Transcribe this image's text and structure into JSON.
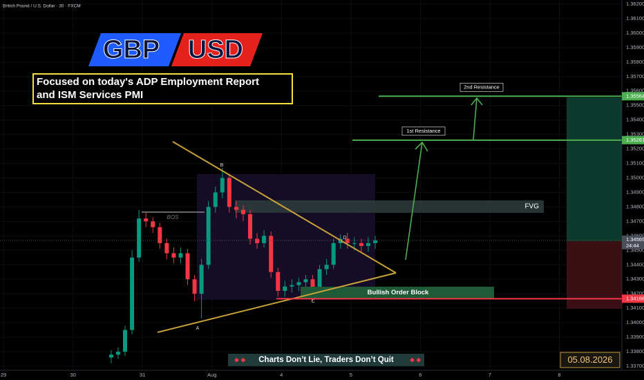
{
  "chart_data": {
    "type": "candlestick",
    "title": "British Pound / U.S. Dollar · 30 · FXCM",
    "logo": [
      "GBP",
      "USD"
    ],
    "headline": [
      "Focused on today's ADP Employment Report",
      "and ISM Services PMI"
    ],
    "xlim": [
      -0.05,
      8.9
    ],
    "xticks": [
      {
        "value": 0,
        "label": "29"
      },
      {
        "value": 1,
        "label": "30"
      },
      {
        "value": 2,
        "label": "31"
      },
      {
        "value": 3,
        "label": "Aug"
      },
      4,
      5,
      6,
      7,
      8
    ],
    "ylim": [
      1.337,
      1.362
    ],
    "yticks": [
      {
        "value": 1.362,
        "label": "1.36200"
      },
      {
        "value": 1.361,
        "label": "1.36100"
      },
      {
        "value": 1.36,
        "label": "1.36000"
      },
      {
        "value": 1.359,
        "label": "1.35900"
      },
      {
        "value": 1.358,
        "label": "1.35800"
      },
      {
        "value": 1.357,
        "label": "1.35700"
      },
      {
        "value": 1.356,
        "label": "1.35600"
      },
      {
        "value": 1.355,
        "label": "1.35500"
      },
      {
        "value": 1.354,
        "label": "1.35400"
      },
      {
        "value": 1.353,
        "label": "1.35300"
      },
      {
        "value": 1.352,
        "label": "1.35200"
      },
      {
        "value": 1.351,
        "label": "1.35100"
      },
      {
        "value": 1.35,
        "label": "1.35000"
      },
      {
        "value": 1.349,
        "label": "1.34900"
      },
      {
        "value": 1.348,
        "label": "1.34800"
      },
      {
        "value": 1.347,
        "label": "1.34700"
      },
      {
        "value": 1.346,
        "label": "1.34600"
      },
      {
        "value": 1.345,
        "label": "1.34500"
      },
      {
        "value": 1.344,
        "label": "1.34400"
      },
      {
        "value": 1.343,
        "label": "1.34300"
      },
      {
        "value": 1.342,
        "label": "1.34200"
      },
      {
        "value": 1.341,
        "label": "1.34100"
      },
      {
        "value": 1.34,
        "label": "1.34000"
      },
      {
        "value": 1.339,
        "label": "1.33900"
      },
      {
        "value": 1.338,
        "label": "1.33800"
      },
      {
        "value": 1.337,
        "label": "1.33700"
      }
    ],
    "up_color": "#089981",
    "down_color": "#f23645",
    "x": [
      1.55,
      1.65,
      1.75,
      1.85,
      1.95,
      2.05,
      2.15,
      2.25,
      2.35,
      2.45,
      2.55,
      2.65,
      2.75,
      2.85,
      2.95,
      3.05,
      3.15,
      3.25,
      3.35,
      3.45,
      3.55,
      3.65,
      3.75,
      3.85,
      3.95,
      4.05,
      4.15,
      4.25,
      4.35,
      4.45,
      4.55,
      4.65,
      4.75,
      4.85,
      4.95,
      5.05,
      5.15,
      5.25,
      5.35
    ],
    "open": [
      1.3376,
      1.3378,
      1.338,
      1.3395,
      1.3445,
      1.3472,
      1.347,
      1.3466,
      1.3455,
      1.3448,
      1.3445,
      1.3448,
      1.343,
      1.342,
      1.344,
      1.348,
      1.349,
      1.35,
      1.348,
      1.3478,
      1.3475,
      1.3458,
      1.3455,
      1.346,
      1.3435,
      1.3422,
      1.3425,
      1.3426,
      1.3428,
      1.343,
      1.3422,
      1.3437,
      1.344,
      1.3455,
      1.3458,
      1.3455,
      1.3455,
      1.3453,
      1.3455
    ],
    "high": [
      1.3381,
      1.3383,
      1.3398,
      1.345,
      1.3478,
      1.3476,
      1.3473,
      1.3469,
      1.3458,
      1.3452,
      1.3452,
      1.3451,
      1.3433,
      1.3444,
      1.3484,
      1.3494,
      1.3507,
      1.3503,
      1.3484,
      1.3481,
      1.3478,
      1.3462,
      1.3464,
      1.3463,
      1.3438,
      1.3429,
      1.343,
      1.3431,
      1.3433,
      1.3433,
      1.344,
      1.3444,
      1.3458,
      1.3461,
      1.3462,
      1.3459,
      1.3458,
      1.3459,
      1.346
    ],
    "low": [
      1.3372,
      1.3375,
      1.3377,
      1.3392,
      1.3442,
      1.3466,
      1.3462,
      1.3451,
      1.3444,
      1.3441,
      1.3441,
      1.3426,
      1.3415,
      1.3403,
      1.3437,
      1.3476,
      1.3486,
      1.3476,
      1.3472,
      1.347,
      1.3454,
      1.3451,
      1.3452,
      1.3431,
      1.3418,
      1.3418,
      1.3421,
      1.3422,
      1.3424,
      1.3415,
      1.3419,
      1.3433,
      1.3437,
      1.3451,
      1.3451,
      1.345,
      1.3449,
      1.3449,
      1.3451
    ],
    "close": [
      1.3378,
      1.338,
      1.3395,
      1.3445,
      1.3472,
      1.347,
      1.3466,
      1.3455,
      1.3448,
      1.3445,
      1.3448,
      1.343,
      1.342,
      1.344,
      1.348,
      1.349,
      1.35,
      1.348,
      1.3478,
      1.3475,
      1.3458,
      1.3455,
      1.346,
      1.3435,
      1.3422,
      1.3425,
      1.3426,
      1.3428,
      1.343,
      1.3422,
      1.3437,
      1.344,
      1.3455,
      1.3458,
      1.3455,
      1.3455,
      1.3453,
      1.3455,
      1.34569
    ],
    "levels": [
      {
        "name": "2nd Resistance",
        "value": 1.35564,
        "color": "#4caf50"
      },
      {
        "name": "1st Resistance",
        "value": 1.35261,
        "color": "#4caf50"
      },
      {
        "value": 1.34166,
        "color": "#f23645"
      }
    ],
    "last_price": 1.34569,
    "countdown": "24:44",
    "annotations": {
      "fvg": "FVG",
      "order_block": "Bullish Order Block",
      "bos": "BOS",
      "points": [
        "A",
        "B",
        "C",
        "D"
      ]
    },
    "banner": "Charts Don’t Lie, Traders Don’t Quit",
    "date": "05.08.2026"
  }
}
